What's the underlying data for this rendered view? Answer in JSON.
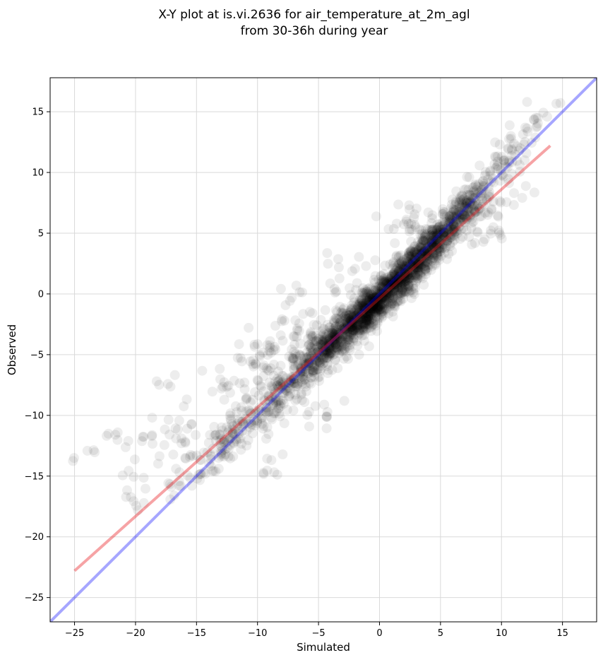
{
  "chart_data": {
    "type": "scatter",
    "title": "X-Y plot at is.vi.2636 for air_temperature_at_2m_agl",
    "subtitle": "from 30-36h during year",
    "xlabel": "Simulated",
    "ylabel": "Observed",
    "xlim": [
      -27,
      17.8
    ],
    "ylim": [
      -27,
      17.8
    ],
    "xticks": [
      -25,
      -20,
      -15,
      -10,
      -5,
      0,
      5,
      10,
      15
    ],
    "yticks": [
      -25,
      -20,
      -15,
      -10,
      -5,
      0,
      5,
      10,
      15
    ],
    "xtick_labels": [
      "−25",
      "−20",
      "−15",
      "−10",
      "−5",
      "0",
      "5",
      "10",
      "15"
    ],
    "ytick_labels": [
      "−25",
      "−20",
      "−15",
      "−10",
      "−5",
      "0",
      "5",
      "10",
      "15"
    ],
    "grid": true,
    "point_color": "#000000",
    "point_alpha": 0.07,
    "reference_line": {
      "color": "#0000ff",
      "x": [
        -27,
        17.8
      ],
      "y": [
        -27,
        17.8
      ]
    },
    "fit_line": {
      "color": "#e8191e",
      "x": [
        -25,
        14
      ],
      "y": [
        -22.8,
        12.2
      ]
    },
    "clusters": [
      {
        "cx": -25,
        "cy": -13.6,
        "n": 2,
        "sx": 0.2,
        "sy": 0.2,
        "r": 0
      },
      {
        "cx": -23.5,
        "cy": -12.9,
        "n": 3,
        "sx": 0.3,
        "sy": 0.2,
        "r": 0
      },
      {
        "cx": -21.5,
        "cy": -12.5,
        "n": 6,
        "sx": 0.6,
        "sy": 0.8,
        "r": 0
      },
      {
        "cx": -19.5,
        "cy": -13,
        "n": 10,
        "sx": 0.8,
        "sy": 1.2,
        "r": 0
      },
      {
        "cx": -19.8,
        "cy": -17,
        "n": 8,
        "sx": 0.6,
        "sy": 0.8,
        "r": 0
      },
      {
        "cx": -18,
        "cy": -12,
        "n": 12,
        "sx": 1.0,
        "sy": 1.4,
        "r": 0
      },
      {
        "cx": -17.5,
        "cy": -7.5,
        "n": 5,
        "sx": 0.6,
        "sy": 0.5,
        "r": 0
      },
      {
        "cx": -16,
        "cy": -11.5,
        "n": 12,
        "sx": 0.8,
        "sy": 1.2,
        "r": 0
      },
      {
        "cx": -15,
        "cy": -14,
        "n": 28,
        "sx": 1.4,
        "sy": 1.6,
        "r": 0.8
      },
      {
        "cx": -13,
        "cy": -7,
        "n": 14,
        "sx": 1.2,
        "sy": 1.2,
        "r": 0
      },
      {
        "cx": -12,
        "cy": -12,
        "n": 45,
        "sx": 1.5,
        "sy": 1.6,
        "r": 0.8
      },
      {
        "cx": -10,
        "cy": -5.5,
        "n": 25,
        "sx": 1.3,
        "sy": 1.2,
        "r": 0
      },
      {
        "cx": -10.5,
        "cy": -9.8,
        "n": 90,
        "sx": 2.0,
        "sy": 2.0,
        "r": 0.85
      },
      {
        "cx": -8.5,
        "cy": -9.5,
        "n": 35,
        "sx": 0.8,
        "sy": 0.9,
        "r": 0.3
      },
      {
        "cx": -9,
        "cy": -14,
        "n": 8,
        "sx": 0.8,
        "sy": 0.8,
        "r": 0
      },
      {
        "cx": -8,
        "cy": -4.5,
        "n": 40,
        "sx": 1.5,
        "sy": 1.3,
        "r": 0.3
      },
      {
        "cx": -7,
        "cy": -1.5,
        "n": 14,
        "sx": 1.0,
        "sy": 1.0,
        "r": 0
      },
      {
        "cx": -6.5,
        "cy": -6.5,
        "n": 120,
        "sx": 2.2,
        "sy": 2.2,
        "r": 0.85
      },
      {
        "cx": -4.5,
        "cy": -10,
        "n": 10,
        "sx": 0.8,
        "sy": 0.8,
        "r": 0
      },
      {
        "cx": -4,
        "cy": -4,
        "n": 380,
        "sx": 2.0,
        "sy": 2.0,
        "r": 0.9
      },
      {
        "cx": -3,
        "cy": 0.5,
        "n": 25,
        "sx": 1.3,
        "sy": 1.3,
        "r": 0.3
      },
      {
        "cx": -1,
        "cy": -1.5,
        "n": 450,
        "sx": 2.0,
        "sy": 2.0,
        "r": 0.9
      },
      {
        "cx": 1,
        "cy": 0.5,
        "n": 420,
        "sx": 1.9,
        "sy": 1.9,
        "r": 0.9
      },
      {
        "cx": 2.5,
        "cy": 6.2,
        "n": 20,
        "sx": 0.9,
        "sy": 0.7,
        "r": 0
      },
      {
        "cx": 3.5,
        "cy": 3,
        "n": 380,
        "sx": 1.9,
        "sy": 1.9,
        "r": 0.9
      },
      {
        "cx": 5.5,
        "cy": 5.5,
        "n": 230,
        "sx": 1.8,
        "sy": 1.8,
        "r": 0.9
      },
      {
        "cx": 7.5,
        "cy": 8,
        "n": 110,
        "sx": 1.6,
        "sy": 1.6,
        "r": 0.85
      },
      {
        "cx": 8.5,
        "cy": 5.5,
        "n": 25,
        "sx": 1.0,
        "sy": 1.2,
        "r": 0.3
      },
      {
        "cx": 10.5,
        "cy": 11,
        "n": 30,
        "sx": 1.2,
        "sy": 1.3,
        "r": 0.8
      },
      {
        "cx": 11,
        "cy": 8,
        "n": 8,
        "sx": 1.0,
        "sy": 1.0,
        "r": 0
      },
      {
        "cx": 12.5,
        "cy": 14,
        "n": 14,
        "sx": 1.0,
        "sy": 1.0,
        "r": 0.6
      },
      {
        "cx": 14,
        "cy": 15,
        "n": 4,
        "sx": 0.7,
        "sy": 0.6,
        "r": 0
      }
    ]
  }
}
